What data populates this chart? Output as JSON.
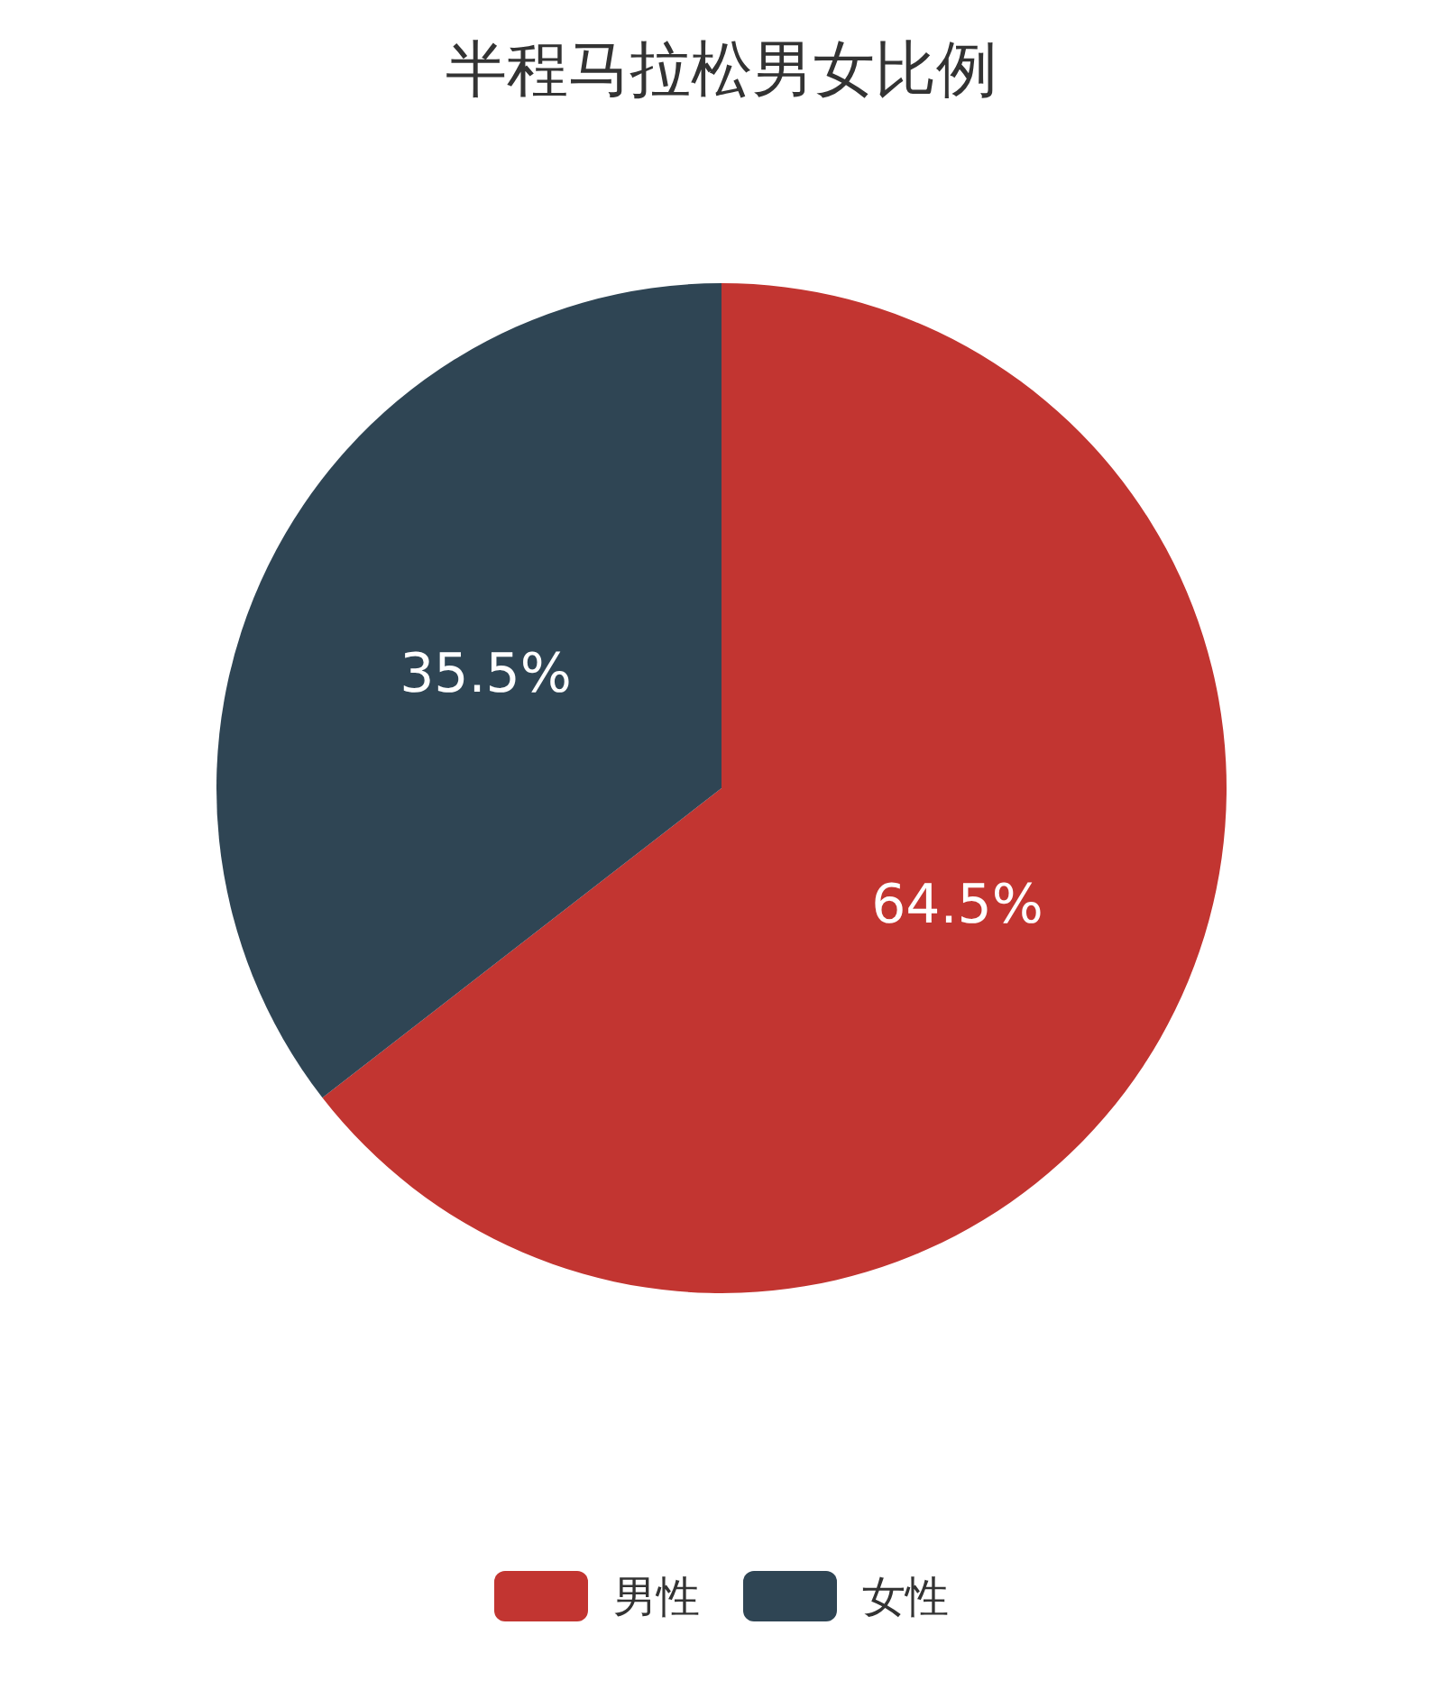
{
  "chart_data": {
    "type": "pie",
    "title": "半程马拉松男女比例",
    "categories": [
      "男性",
      "女性"
    ],
    "values": [
      64.5,
      35.5
    ],
    "colors": [
      "#c23531",
      "#2f4554"
    ],
    "value_labels": [
      "64.5%",
      "35.5%"
    ],
    "legend": "bottom"
  }
}
